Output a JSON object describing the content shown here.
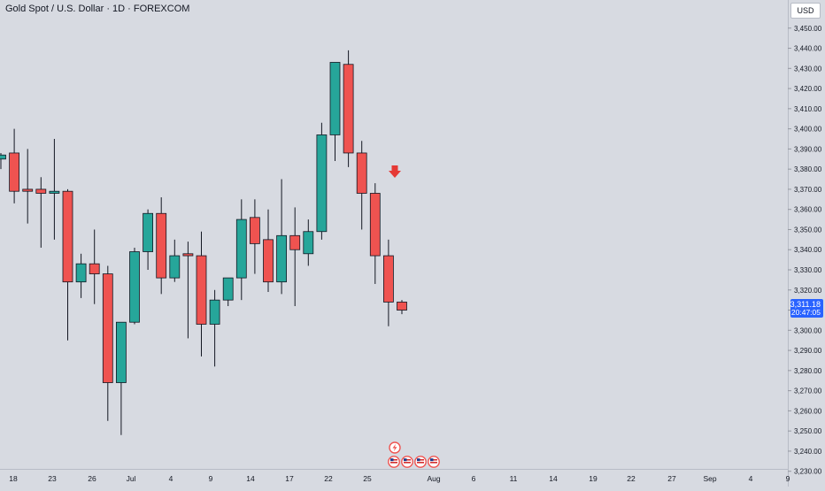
{
  "header": {
    "title": "Gold Spot / U.S. Dollar · 1D · FOREXCOM",
    "currency": "USD"
  },
  "price_tag": {
    "price": "3,311.18",
    "countdown": "20:47:05"
  },
  "colors": {
    "up": "#26a69a",
    "down": "#ef5350",
    "wick": "#131722",
    "background": "#d7dae1",
    "marker_arrow": "#e53935",
    "price_tag": "#2962ff"
  },
  "icons": {
    "marker_arrow": "arrow-down-icon",
    "flash": "lightning-icon",
    "events": "us-flag-icon"
  },
  "chart_data": {
    "type": "candlestick",
    "title": "Gold Spot / U.S. Dollar · 1D · FOREXCOM",
    "ylim": [
      3225,
      3460
    ],
    "y_ticks": [
      "3,450.00",
      "3,440.00",
      "3,430.00",
      "3,420.00",
      "3,410.00",
      "3,400.00",
      "3,390.00",
      "3,380.00",
      "3,370.00",
      "3,360.00",
      "3,350.00",
      "3,340.00",
      "3,330.00",
      "3,320.00",
      "3,310.00",
      "3,300.00",
      "3,290.00",
      "3,280.00",
      "3,270.00",
      "3,260.00",
      "3,250.00",
      "3,240.00",
      "3,230.00"
    ],
    "x_ticks": [
      "18",
      "23",
      "26",
      "Jul",
      "4",
      "9",
      "14",
      "17",
      "22",
      "25",
      "Aug",
      "6",
      "11",
      "14",
      "19",
      "22",
      "27",
      "Sep",
      "4",
      "9"
    ],
    "candles": [
      {
        "o": 3385,
        "h": 3388,
        "l": 3380,
        "c": 3387
      },
      {
        "o": 3388,
        "h": 3400,
        "l": 3363,
        "c": 3369
      },
      {
        "o": 3370,
        "h": 3390,
        "l": 3353,
        "c": 3369
      },
      {
        "o": 3370,
        "h": 3376,
        "l": 3341,
        "c": 3368
      },
      {
        "o": 3368,
        "h": 3395,
        "l": 3345,
        "c": 3369
      },
      {
        "o": 3369,
        "h": 3370,
        "l": 3295,
        "c": 3324
      },
      {
        "o": 3324,
        "h": 3338,
        "l": 3316,
        "c": 3333
      },
      {
        "o": 3333,
        "h": 3350,
        "l": 3313,
        "c": 3328
      },
      {
        "o": 3328,
        "h": 3332,
        "l": 3255,
        "c": 3274
      },
      {
        "o": 3274,
        "h": 3304,
        "l": 3248,
        "c": 3304
      },
      {
        "o": 3304,
        "h": 3341,
        "l": 3303,
        "c": 3339
      },
      {
        "o": 3339,
        "h": 3360,
        "l": 3330,
        "c": 3358
      },
      {
        "o": 3358,
        "h": 3366,
        "l": 3318,
        "c": 3326
      },
      {
        "o": 3326,
        "h": 3345,
        "l": 3324,
        "c": 3337
      },
      {
        "o": 3338,
        "h": 3344,
        "l": 3296,
        "c": 3337
      },
      {
        "o": 3337,
        "h": 3349,
        "l": 3287,
        "c": 3303
      },
      {
        "o": 3303,
        "h": 3320,
        "l": 3282,
        "c": 3315
      },
      {
        "o": 3315,
        "h": 3326,
        "l": 3312,
        "c": 3326
      },
      {
        "o": 3326,
        "h": 3365,
        "l": 3315,
        "c": 3355
      },
      {
        "o": 3356,
        "h": 3365,
        "l": 3328,
        "c": 3343
      },
      {
        "o": 3345,
        "h": 3360,
        "l": 3319,
        "c": 3324
      },
      {
        "o": 3324,
        "h": 3375,
        "l": 3318,
        "c": 3347
      },
      {
        "o": 3347,
        "h": 3361,
        "l": 3312,
        "c": 3340
      },
      {
        "o": 3338,
        "h": 3355,
        "l": 3332,
        "c": 3349
      },
      {
        "o": 3349,
        "h": 3403,
        "l": 3345,
        "c": 3397
      },
      {
        "o": 3397,
        "h": 3433,
        "l": 3384,
        "c": 3433
      },
      {
        "o": 3432,
        "h": 3439,
        "l": 3381,
        "c": 3388
      },
      {
        "o": 3388,
        "h": 3394,
        "l": 3350,
        "c": 3368
      },
      {
        "o": 3368,
        "h": 3373,
        "l": 3323,
        "c": 3337
      },
      {
        "o": 3337,
        "h": 3345,
        "l": 3302,
        "c": 3314
      },
      {
        "o": 3314,
        "h": 3315,
        "l": 3308,
        "c": 3310
      }
    ]
  }
}
